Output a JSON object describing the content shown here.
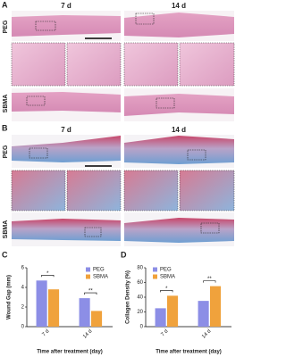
{
  "panels": {
    "A": {
      "label": "A",
      "columns": [
        "7 d",
        "14 d"
      ],
      "rows": [
        "PEG",
        "SBMA"
      ]
    },
    "B": {
      "label": "B",
      "columns": [
        "7 d",
        "14 d"
      ],
      "rows": [
        "PEG",
        "SBMA"
      ]
    }
  },
  "chart_data": [
    {
      "type": "bar",
      "panel": "C",
      "ylabel": "Wound Gap (mm)",
      "xlabel": "Time after treatment (day)",
      "categories": [
        "7 d",
        "14 d"
      ],
      "series": [
        {
          "name": "PEG",
          "color": "#8c8ee6",
          "values": [
            4.7,
            2.9
          ]
        },
        {
          "name": "SBMA",
          "color": "#f0a23c",
          "values": [
            3.8,
            1.6
          ]
        }
      ],
      "significance": [
        "*",
        "**"
      ],
      "ylim": [
        0,
        6
      ],
      "yticks": [
        0,
        2,
        4,
        6
      ],
      "legend": "upper right"
    },
    {
      "type": "bar",
      "panel": "D",
      "ylabel": "Collagen Density (%)",
      "xlabel": "Time after treatment (day)",
      "categories": [
        "7 d",
        "14 d"
      ],
      "series": [
        {
          "name": "PEG",
          "color": "#8c8ee6",
          "values": [
            25,
            35
          ]
        },
        {
          "name": "SBMA",
          "color": "#f0a23c",
          "values": [
            42,
            55
          ]
        }
      ],
      "significance": [
        "*",
        "**"
      ],
      "ylim": [
        0,
        80
      ],
      "yticks": [
        0,
        20,
        40,
        60,
        80
      ],
      "legend": "upper left"
    }
  ]
}
